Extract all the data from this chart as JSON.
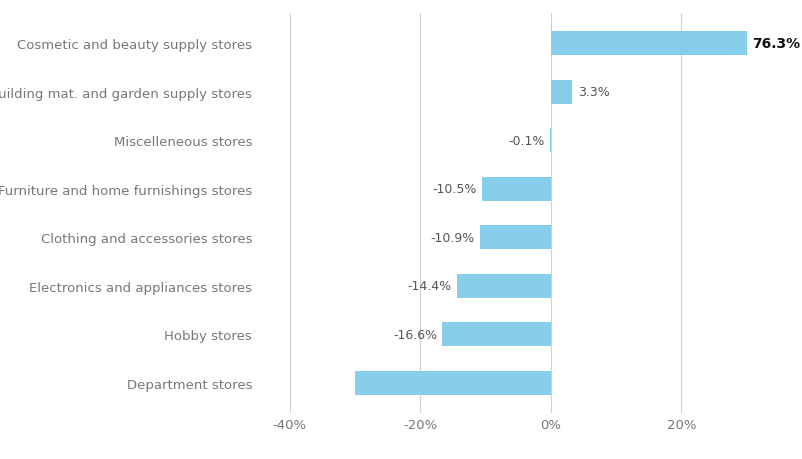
{
  "categories": [
    "Department stores",
    "Hobby stores",
    "Electronics and appliances stores",
    "Clothing and accessories stores",
    "Furniture and home furnishings stores",
    "Miscelleneous stores",
    "Building mat. and garden supply stores",
    "Cosmetic and beauty supply stores"
  ],
  "values": [
    -30.0,
    -16.6,
    -14.4,
    -10.9,
    -10.5,
    -0.1,
    3.3,
    76.3
  ],
  "labels": [
    "",
    "-16.6%",
    "-14.4%",
    "-10.9%",
    "-10.5%",
    "-0.1%",
    "3.3%",
    "76.3%"
  ],
  "bar_color": "#87ceeb",
  "text_color": "#777777",
  "label_color_negative": "#555555",
  "label_color_positive": "#555555",
  "label_color_special": "#111111",
  "xlim": [
    -45,
    30
  ],
  "xticks": [
    -40,
    -20,
    0,
    20
  ],
  "xticklabels": [
    "-40%",
    "-20%",
    "0%",
    "20%"
  ],
  "grid_color": "#d0d0d0",
  "background_color": "#ffffff",
  "bar_height": 0.5,
  "figsize": [
    8.03,
    4.6
  ],
  "dpi": 100
}
